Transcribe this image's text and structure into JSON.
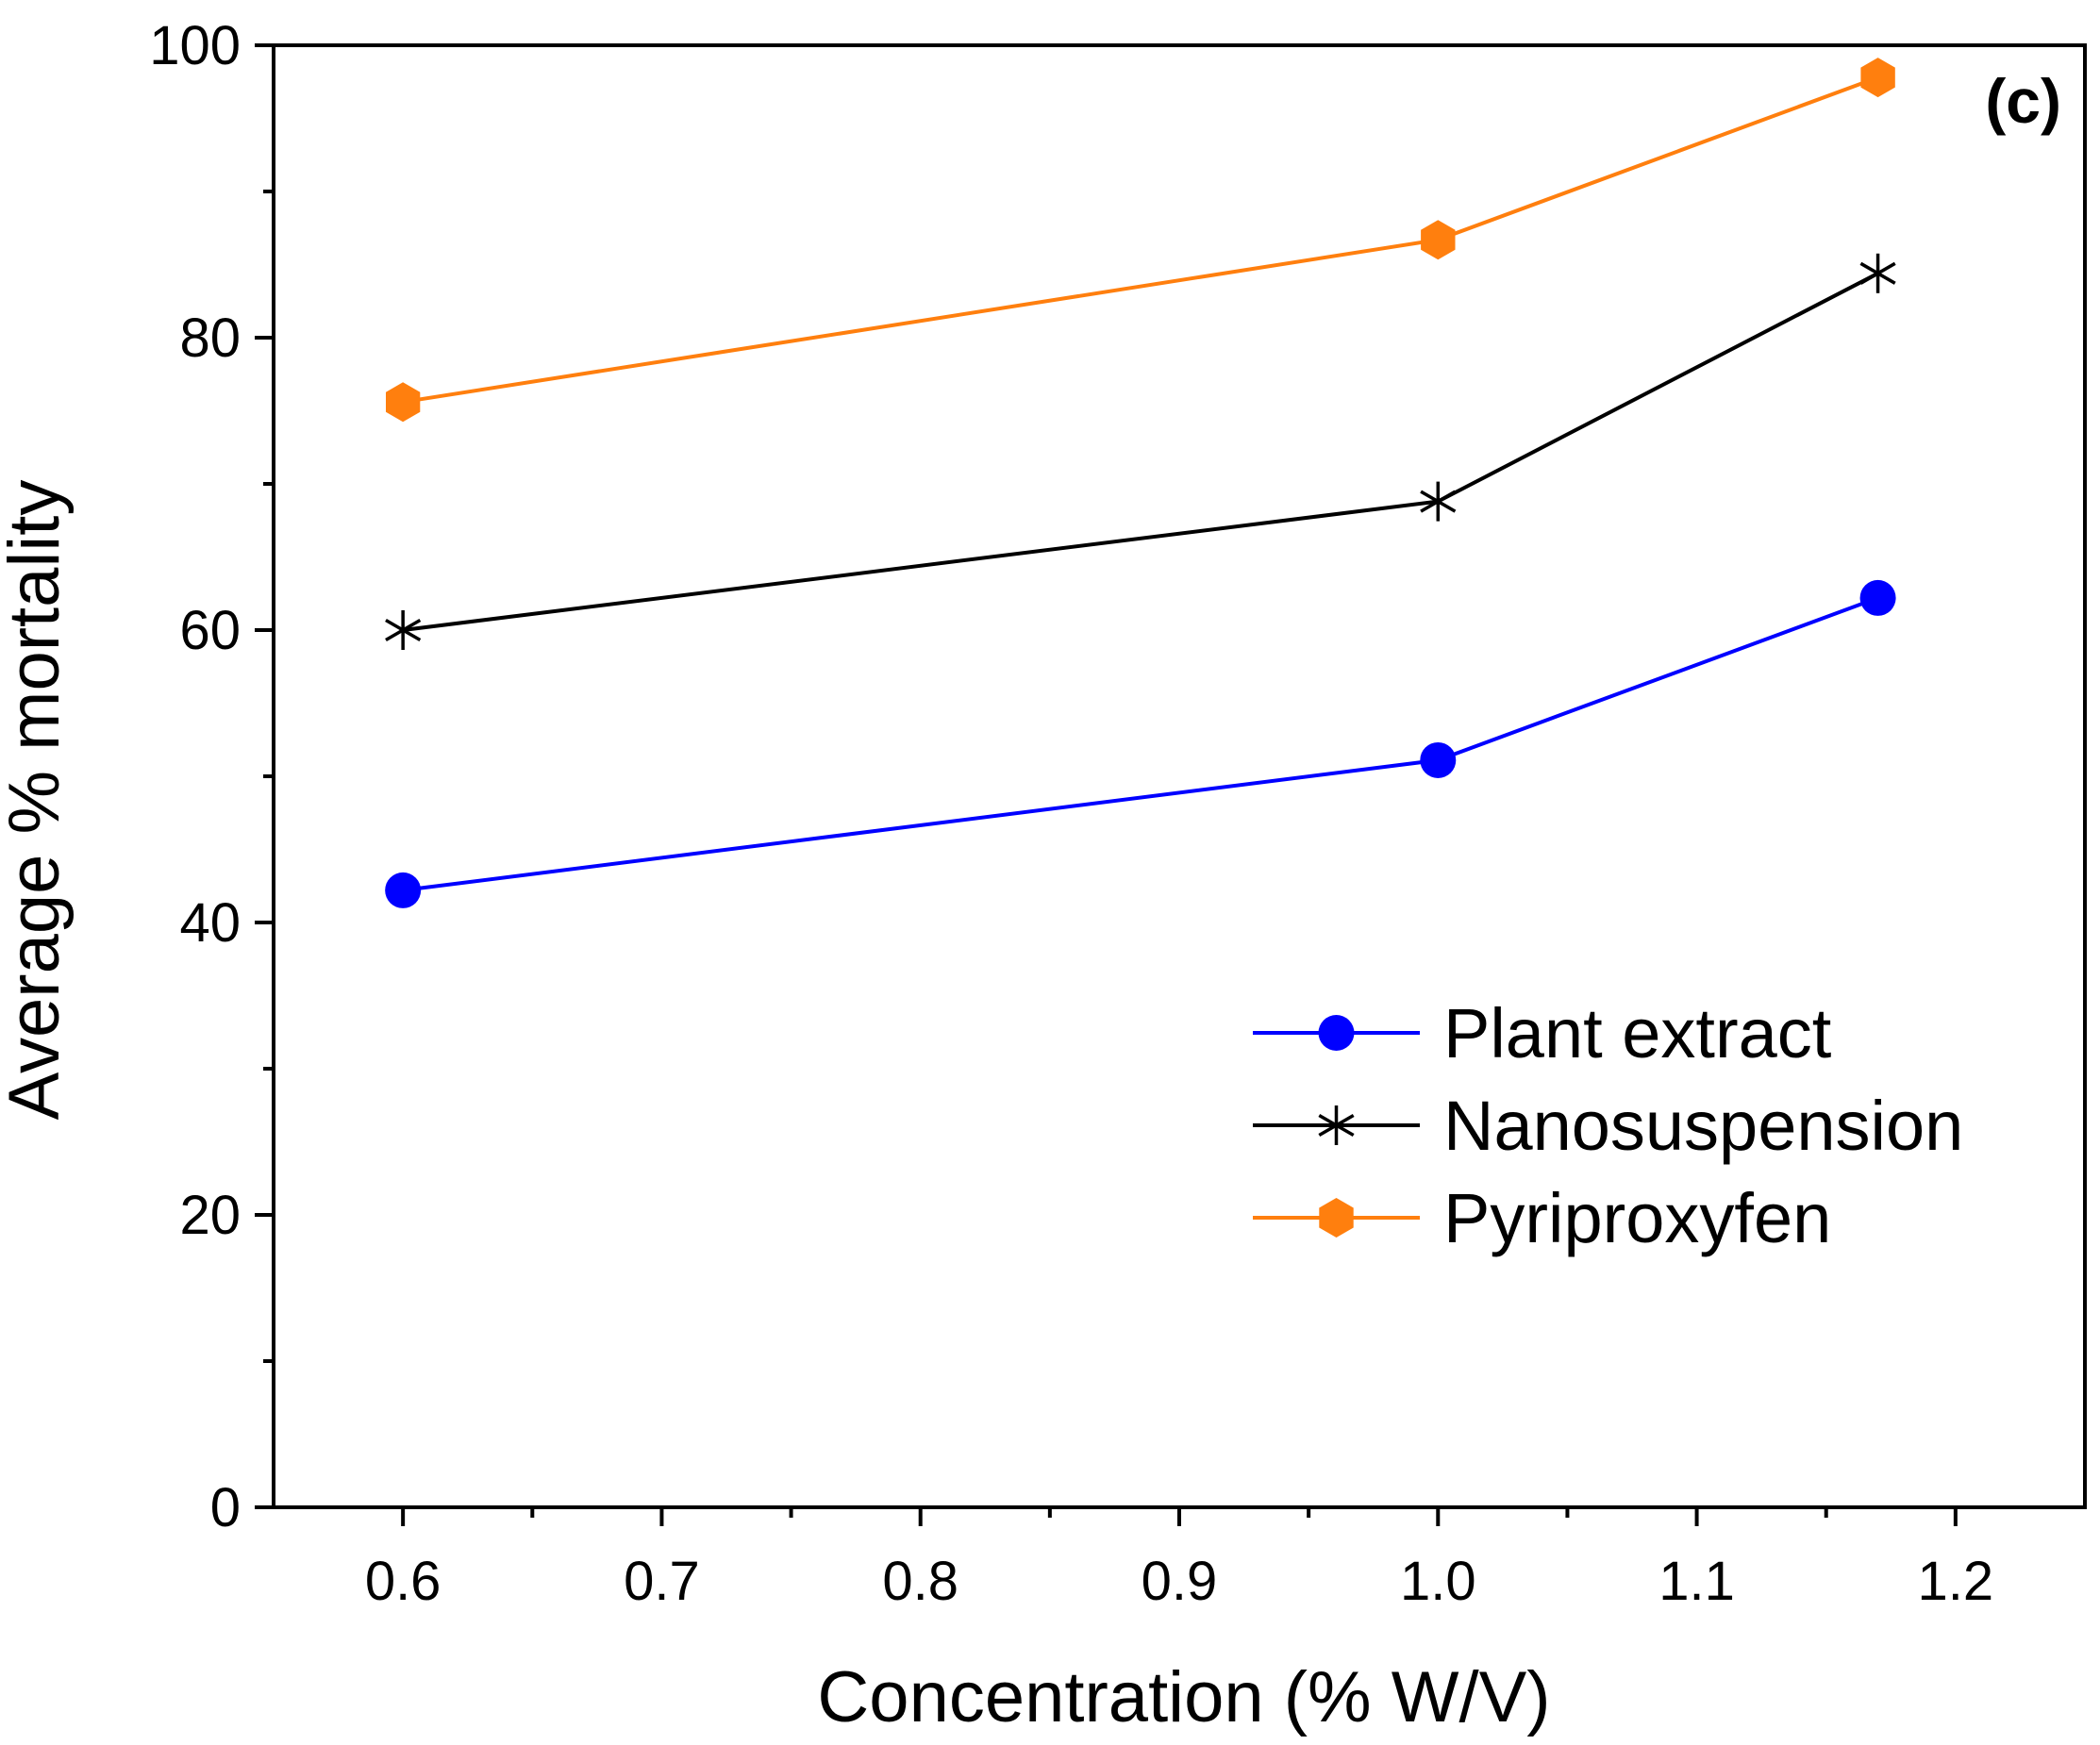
{
  "chart_data": {
    "type": "line",
    "title": "",
    "panel_label": "(c)",
    "xlabel": "Concentration (% W/V)",
    "ylabel": "Average % mortality",
    "xlim": [
      0.55,
      1.25
    ],
    "ylim": [
      0,
      100
    ],
    "xticks": [
      0.6,
      0.7,
      0.8,
      0.9,
      1.0,
      1.1,
      1.2
    ],
    "xtick_labels": [
      "0.6",
      "0.7",
      "0.8",
      "0.9",
      "1.0",
      "1.1",
      "1.2"
    ],
    "yticks": [
      0,
      20,
      40,
      60,
      80,
      100
    ],
    "ytick_labels": [
      "0",
      "20",
      "40",
      "60",
      "80",
      "100"
    ],
    "grid": false,
    "legend_position": "bottom-right",
    "x": [
      0.6,
      1.0,
      1.17
    ],
    "series": [
      {
        "name": "Plant extract",
        "values": [
          42.2,
          51.1,
          62.2
        ],
        "color": "#0000ff",
        "marker": "circle"
      },
      {
        "name": "Nanosuspension",
        "values": [
          60.0,
          68.8,
          84.4
        ],
        "color": "#000000",
        "marker": "asterisk"
      },
      {
        "name": "Pyriproxyfen",
        "values": [
          75.6,
          86.7,
          97.8
        ],
        "color": "#ff7f0e",
        "marker": "hexagon"
      }
    ]
  }
}
